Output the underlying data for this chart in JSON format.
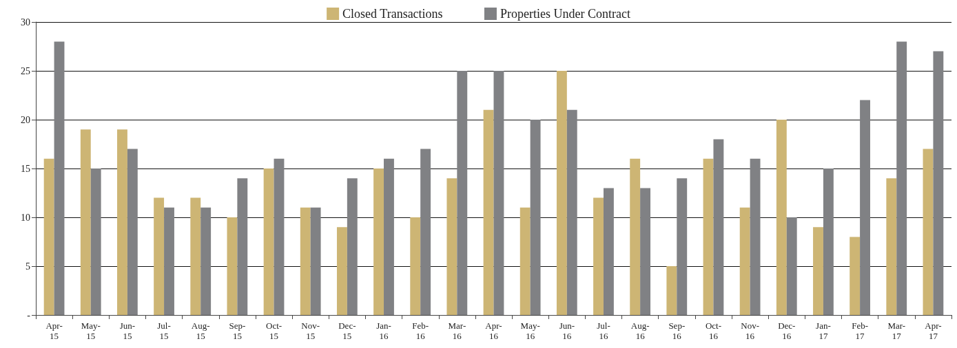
{
  "chart_data": {
    "type": "bar",
    "categories": [
      "Apr-15",
      "May-15",
      "Jun-15",
      "Jul-15",
      "Aug-15",
      "Sep-15",
      "Oct-15",
      "Nov-15",
      "Dec-15",
      "Jan-16",
      "Feb-16",
      "Mar-16",
      "Apr-16",
      "May-16",
      "Jun-16",
      "Jul-16",
      "Aug-16",
      "Sep-16",
      "Oct-16",
      "Nov-16",
      "Dec-16",
      "Jan-17",
      "Feb-17",
      "Mar-17",
      "Apr-17"
    ],
    "series": [
      {
        "name": "Closed Transactions",
        "color": "#cdb574",
        "values": [
          16,
          19,
          19,
          12,
          12,
          10,
          15,
          11,
          9,
          15,
          10,
          14,
          21,
          11,
          25,
          12,
          16,
          5,
          16,
          11,
          20,
          9,
          8,
          14,
          17
        ]
      },
      {
        "name": "Properties Under Contract",
        "color": "#808184",
        "values": [
          28,
          15,
          17,
          11,
          11,
          14,
          16,
          11,
          14,
          16,
          17,
          25,
          25,
          20,
          21,
          13,
          13,
          14,
          18,
          16,
          10,
          15,
          22,
          28,
          27
        ]
      }
    ],
    "ylim": [
      0,
      30
    ],
    "yticks": [
      {
        "value": 0,
        "label": "-"
      },
      5,
      10,
      15,
      20,
      25,
      30
    ],
    "grid": "y",
    "legend": "top"
  }
}
